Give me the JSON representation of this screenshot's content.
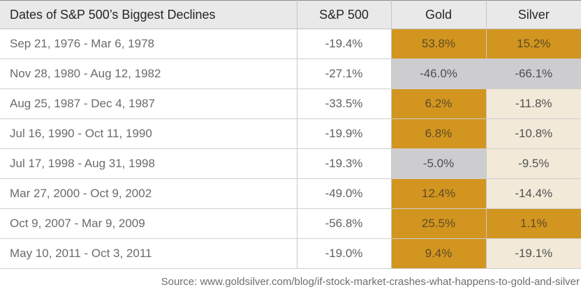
{
  "table": {
    "title": "Dates of S&P 500’s Biggest Declines",
    "columns": [
      "S&P 500",
      "Gold",
      "Silver"
    ],
    "rows": [
      {
        "dates": "Sep 21, 1976 - Mar 6, 1978",
        "sp500": "-19.4%",
        "gold": "53.8%",
        "gold_bg": "gold",
        "silver": "15.2%",
        "silver_bg": "gold"
      },
      {
        "dates": "Nov 28, 1980 - Aug 12, 1982",
        "sp500": "-27.1%",
        "gold": "-46.0%",
        "gold_bg": "gray",
        "silver": "-66.1%",
        "silver_bg": "gray"
      },
      {
        "dates": "Aug 25, 1987 - Dec 4, 1987",
        "sp500": "-33.5%",
        "gold": "6.2%",
        "gold_bg": "gold",
        "silver": "-11.8%",
        "silver_bg": "cream"
      },
      {
        "dates": "Jul 16, 1990 - Oct 11, 1990",
        "sp500": "-19.9%",
        "gold": "6.8%",
        "gold_bg": "gold",
        "silver": "-10.8%",
        "silver_bg": "cream"
      },
      {
        "dates": "Jul 17, 1998 - Aug 31, 1998",
        "sp500": "-19.3%",
        "gold": "-5.0%",
        "gold_bg": "gray",
        "silver": "-9.5%",
        "silver_bg": "cream"
      },
      {
        "dates": "Mar 27, 2000 - Oct 9, 2002",
        "sp500": "-49.0%",
        "gold": "12.4%",
        "gold_bg": "gold",
        "silver": "-14.4%",
        "silver_bg": "cream"
      },
      {
        "dates": "Oct 9, 2007 - Mar 9, 2009",
        "sp500": "-56.8%",
        "gold": "25.5%",
        "gold_bg": "gold",
        "silver": "1.1%",
        "silver_bg": "gold"
      },
      {
        "dates": "May 10, 2011 - Oct 3, 2011",
        "sp500": "-19.0%",
        "gold": "9.4%",
        "gold_bg": "gold",
        "silver": "-19.1%",
        "silver_bg": "cream"
      }
    ]
  },
  "source": "Source: www.goldsilver.com/blog/if-stock-market-crashes-what-happens-to-gold-and-silver",
  "colors": {
    "gold": "#d2951f",
    "gray": "#cdcdcf",
    "cream": "#f2e9d8",
    "header_bg": "#e9e9e9"
  },
  "chart_data": {
    "type": "table",
    "title": "Dates of S&P 500’s Biggest Declines",
    "columns": [
      "Dates of S&P 500’s Biggest Declines",
      "S&P 500",
      "Gold",
      "Silver"
    ],
    "units": "percent",
    "rows": [
      [
        "Sep 21, 1976 - Mar 6, 1978",
        -19.4,
        53.8,
        15.2
      ],
      [
        "Nov 28, 1980 - Aug 12, 1982",
        -27.1,
        -46.0,
        -66.1
      ],
      [
        "Aug 25, 1987 - Dec 4, 1987",
        -33.5,
        6.2,
        -11.8
      ],
      [
        "Jul 16, 1990 - Oct 11, 1990",
        -19.9,
        6.8,
        -10.8
      ],
      [
        "Jul 17, 1998 - Aug 31, 1998",
        -19.3,
        -5.0,
        -9.5
      ],
      [
        "Mar 27, 2000 - Oct 9, 2002",
        -49.0,
        12.4,
        -14.4
      ],
      [
        "Oct 9, 2007 - Mar 9, 2009",
        -56.8,
        25.5,
        1.1
      ],
      [
        "May 10, 2011 - Oct 3, 2011",
        -19.0,
        9.4,
        -19.1
      ]
    ],
    "cell_highlight_legend": {
      "gold": "gold-colored cell",
      "gray": "silver/gray-colored cell",
      "cream": "cream-colored cell"
    },
    "source": "www.goldsilver.com/blog/if-stock-market-crashes-what-happens-to-gold-and-silver"
  }
}
